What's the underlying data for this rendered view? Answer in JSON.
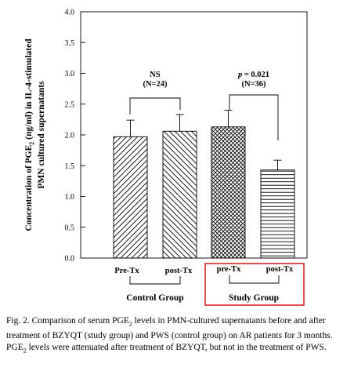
{
  "chart_data": {
    "type": "bar",
    "ylabel_line1_pre": "Concentration of PGE",
    "ylabel_line1_sub": "2",
    "ylabel_line1_post": " (ng/ml) in IL-4-stimulated",
    "ylabel_line2": "PMN cultured supernatants",
    "ylim": [
      0,
      4
    ],
    "yticks": [
      "0.0",
      "0.5",
      "1.0",
      "1.5",
      "2.0",
      "2.5",
      "3.0",
      "3.5",
      "4.0"
    ],
    "bars": [
      {
        "label": "Pre-Tx",
        "value": 1.97,
        "error": 0.27,
        "pattern": "fwd"
      },
      {
        "label": "post-Tx",
        "value": 2.06,
        "error": 0.27,
        "pattern": "back"
      },
      {
        "label": "pre-Tx",
        "value": 2.13,
        "error": 0.27,
        "pattern": "cross"
      },
      {
        "label": "post-Tx",
        "value": 1.43,
        "error": 0.16,
        "pattern": "horiz"
      }
    ],
    "groups": [
      "Control Group",
      "Study Group"
    ],
    "annotations": [
      {
        "line1": "NS",
        "line2": "(N=24)"
      },
      {
        "line1_italic": "p",
        "line1_rest": " = 0.021",
        "line2": "(N=36)"
      }
    ]
  },
  "caption": {
    "p1": "Fig. 2.  Comparison of serum PGE",
    "sub1": "2",
    "p2": " levels in PMN-cultured supernatants before and after treatment of BZYQT (study group) and PWS (control group) on AR patients for 3 months. PGE",
    "sub2": "2",
    "p3": " levels were attenuated after treatment of BZYQT, but not in the treatment of PWS."
  },
  "colors": {
    "ink": "#000000",
    "highlight_box": "#d9262c"
  }
}
